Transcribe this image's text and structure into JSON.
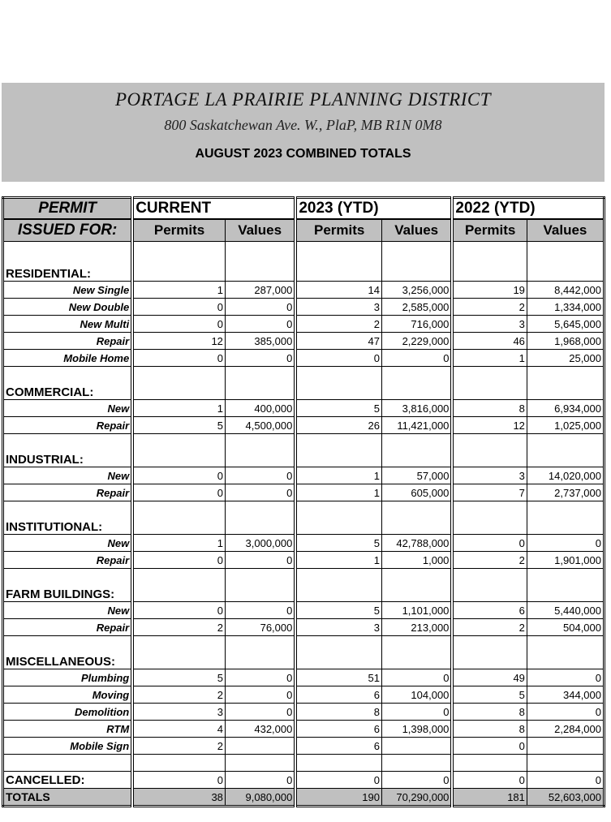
{
  "header": {
    "org": "PORTAGE LA PRAIRIE PLANNING DISTRICT",
    "address": "800 Saskatchewan Ave. W., PlaP, MB  R1N 0M8",
    "report_title": "AUGUST 2023 COMBINED TOTALS"
  },
  "table": {
    "label_header_1": "PERMIT",
    "label_header_2": "ISSUED FOR:",
    "groups": [
      "CURRENT",
      "2023 (YTD)",
      "2022 (YTD)"
    ],
    "subheaders": [
      "Permits",
      "Values",
      "Permits",
      "Values",
      "Permits",
      "Values"
    ],
    "sections": [
      {
        "title": "RESIDENTIAL:",
        "rows": [
          {
            "label": "New Single",
            "values": [
              "1",
              "287,000",
              "14",
              "3,256,000",
              "19",
              "8,442,000"
            ]
          },
          {
            "label": "New Double",
            "values": [
              "0",
              "0",
              "3",
              "2,585,000",
              "2",
              "1,334,000"
            ]
          },
          {
            "label": "New Multi",
            "values": [
              "0",
              "0",
              "2",
              "716,000",
              "3",
              "5,645,000"
            ]
          },
          {
            "label": "Repair",
            "values": [
              "12",
              "385,000",
              "47",
              "2,229,000",
              "46",
              "1,968,000"
            ]
          },
          {
            "label": "Mobile Home",
            "values": [
              "0",
              "0",
              "0",
              "0",
              "1",
              "25,000"
            ]
          }
        ]
      },
      {
        "title": "COMMERCIAL:",
        "rows": [
          {
            "label": "New",
            "values": [
              "1",
              "400,000",
              "5",
              "3,816,000",
              "8",
              "6,934,000"
            ]
          },
          {
            "label": "Repair",
            "values": [
              "5",
              "4,500,000",
              "26",
              "11,421,000",
              "12",
              "1,025,000"
            ]
          }
        ]
      },
      {
        "title": "INDUSTRIAL:",
        "rows": [
          {
            "label": "New",
            "values": [
              "0",
              "0",
              "1",
              "57,000",
              "3",
              "14,020,000"
            ]
          },
          {
            "label": "Repair",
            "values": [
              "0",
              "0",
              "1",
              "605,000",
              "7",
              "2,737,000"
            ]
          }
        ]
      },
      {
        "title": "INSTITUTIONAL:",
        "rows": [
          {
            "label": "New",
            "values": [
              "1",
              "3,000,000",
              "5",
              "42,788,000",
              "0",
              "0"
            ]
          },
          {
            "label": "Repair",
            "values": [
              "0",
              "0",
              "1",
              "1,000",
              "2",
              "1,901,000"
            ]
          }
        ]
      },
      {
        "title": " FARM BUILDINGS:",
        "rows": [
          {
            "label": "New",
            "values": [
              "0",
              "0",
              "5",
              "1,101,000",
              "6",
              "5,440,000"
            ]
          },
          {
            "label": "Repair",
            "values": [
              "2",
              "76,000",
              "3",
              "213,000",
              "2",
              "504,000"
            ]
          }
        ]
      },
      {
        "title": " MISCELLANEOUS:",
        "rows": [
          {
            "label": "Plumbing",
            "values": [
              "5",
              "0",
              "51",
              "0",
              "49",
              "0"
            ]
          },
          {
            "label": "Moving",
            "values": [
              "2",
              "0",
              "6",
              "104,000",
              "5",
              "344,000"
            ]
          },
          {
            "label": "Demolition",
            "values": [
              "3",
              "0",
              "8",
              "0",
              "8",
              "0"
            ]
          },
          {
            "label": "RTM",
            "values": [
              "4",
              "432,000",
              "6",
              "1,398,000",
              "8",
              "2,284,000"
            ]
          },
          {
            "label": "Mobile Sign",
            "values": [
              "2",
              "",
              "6",
              "",
              "0",
              ""
            ]
          }
        ]
      }
    ],
    "cancelled": {
      "label": "CANCELLED:",
      "values": [
        "0",
        "0",
        "0",
        "0",
        "0",
        "0"
      ]
    },
    "totals": {
      "label": "TOTALS",
      "values": [
        "38",
        "9,080,000",
        "190",
        "70,290,000",
        "181",
        "52,603,000"
      ]
    }
  }
}
